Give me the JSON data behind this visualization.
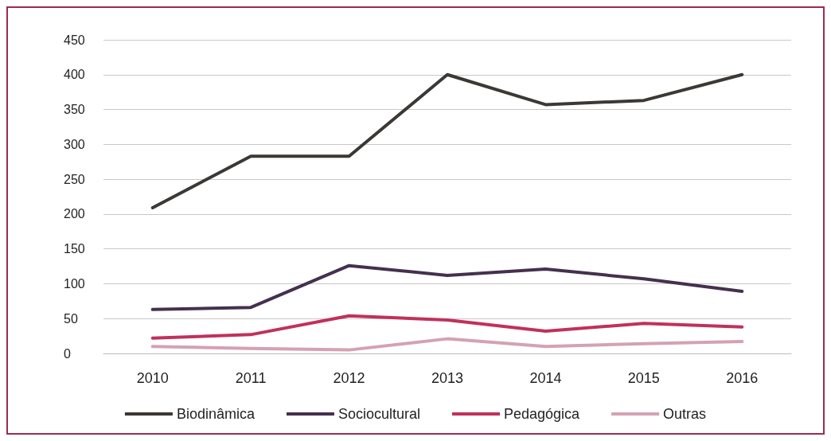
{
  "chart_data": {
    "type": "line",
    "categories": [
      "2010",
      "2011",
      "2012",
      "2013",
      "2014",
      "2015",
      "2016"
    ],
    "series": [
      {
        "name": "Biodinâmica",
        "color": "#3b3835",
        "values": [
          209,
          283,
          283,
          400,
          357,
          363,
          400
        ]
      },
      {
        "name": "Sociocultural",
        "color": "#45304f",
        "values": [
          63,
          66,
          126,
          112,
          121,
          107,
          89
        ]
      },
      {
        "name": "Pedagógica",
        "color": "#c0315b",
        "values": [
          22,
          27,
          54,
          48,
          32,
          43,
          38
        ]
      },
      {
        "name": "Outras",
        "color": "#d4a1b5",
        "values": [
          10,
          7,
          5,
          21,
          10,
          14,
          17
        ]
      }
    ],
    "ylim": [
      0,
      450
    ],
    "yticks": [
      0,
      50,
      100,
      150,
      200,
      250,
      300,
      350,
      400,
      450
    ],
    "grid": "y",
    "legend": "bottom",
    "marker": "none",
    "line_style": "solid"
  }
}
